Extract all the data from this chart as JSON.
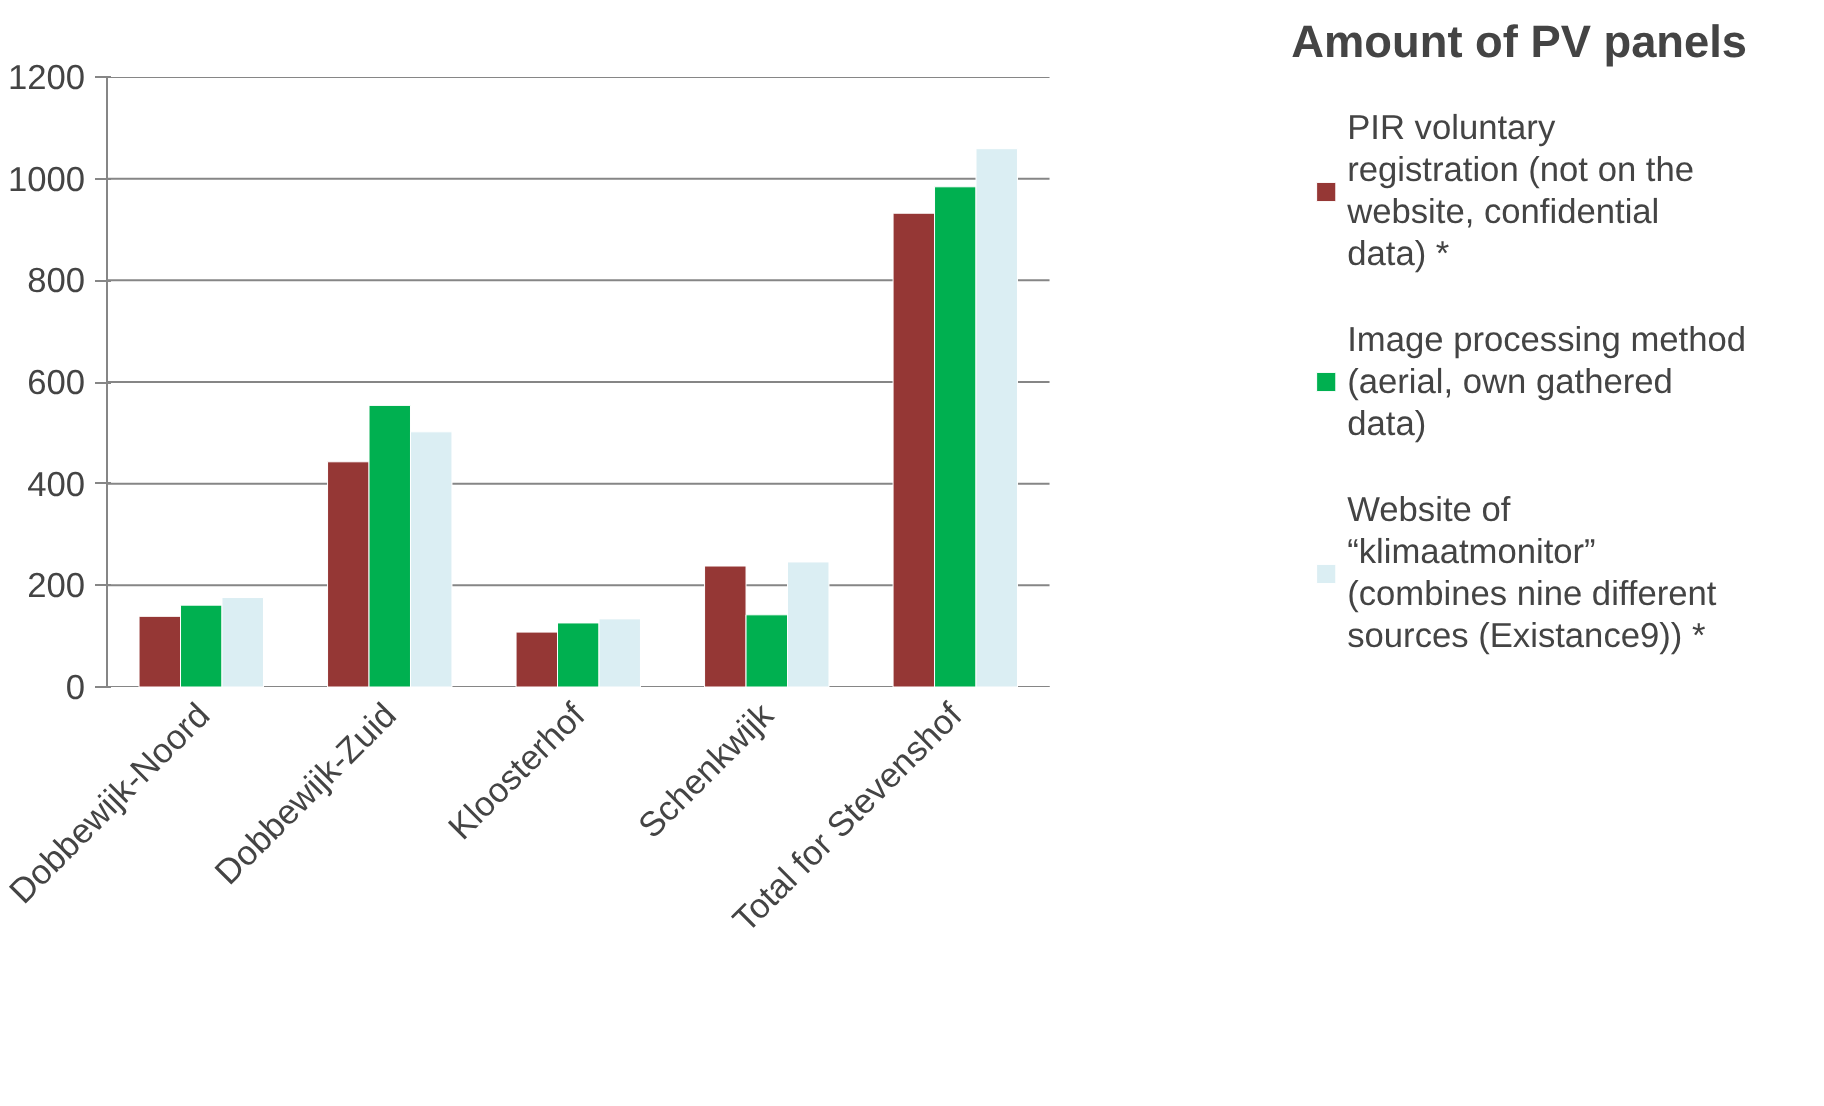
{
  "chart_data": {
    "type": "bar",
    "title": "Amount of PV panels",
    "categories": [
      "Dobbewijk-Noord",
      "Dobbewijk-Zuid",
      "Kloosterhof",
      "Schenkwijk",
      "Total for Stevenshof"
    ],
    "series": [
      {
        "name": "PIR voluntary registration (not on the website, confidential data) *",
        "color": "#953735",
        "values": [
          139,
          443,
          108,
          238,
          932
        ]
      },
      {
        "name": "Image processing method (aerial, own gathered data)",
        "color": "#00b050",
        "values": [
          161,
          554,
          126,
          142,
          984
        ]
      },
      {
        "name": "Website of “klimaatmonitor” (combines nine different sources (Existance9)) *",
        "color": "#dbeef3",
        "values": [
          176,
          502,
          134,
          246,
          1059
        ]
      }
    ],
    "ylim": [
      0,
      1200
    ],
    "yticks": [
      0,
      200,
      400,
      600,
      800,
      1000,
      1200
    ],
    "grid": "y",
    "legend": "right"
  }
}
